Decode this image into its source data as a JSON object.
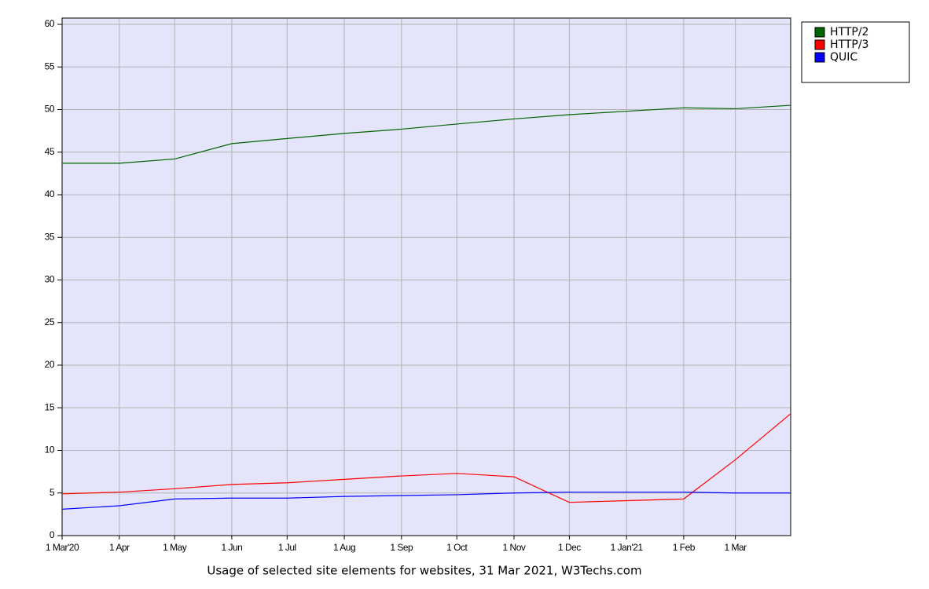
{
  "chart_data": {
    "type": "line",
    "caption": "Usage of selected site elements for websites, 31 Mar 2021, W3Techs.com",
    "x": [
      "2020-03-01",
      "2020-04-01",
      "2020-05-01",
      "2020-06-01",
      "2020-07-01",
      "2020-08-01",
      "2020-09-01",
      "2020-10-01",
      "2020-11-01",
      "2020-12-01",
      "2021-01-01",
      "2021-02-01",
      "2021-03-01",
      "2021-03-31"
    ],
    "series": [
      {
        "name": "HTTP/2",
        "color": "#006400",
        "values": [
          43.7,
          43.7,
          44.2,
          46.0,
          46.6,
          47.2,
          47.7,
          48.3,
          48.9,
          49.4,
          49.8,
          50.2,
          50.1,
          50.5
        ]
      },
      {
        "name": "HTTP/3",
        "color": "#ff0000",
        "values": [
          4.9,
          5.1,
          5.5,
          6.0,
          6.2,
          6.6,
          7.0,
          7.3,
          6.9,
          3.9,
          4.1,
          4.3,
          8.9,
          14.3
        ]
      },
      {
        "name": "QUIC",
        "color": "#0000ff",
        "values": [
          3.1,
          3.5,
          4.3,
          4.4,
          4.4,
          4.6,
          4.7,
          4.8,
          5.0,
          5.1,
          5.1,
          5.1,
          5.0,
          5.0
        ]
      }
    ],
    "xlim": [
      "2020-03-01",
      "2021-03-31"
    ],
    "xticks": [
      {
        "value": "2020-03-01",
        "label": "1 Mar'20"
      },
      {
        "value": "2020-04-01",
        "label": "1 Apr"
      },
      {
        "value": "2020-05-01",
        "label": "1 May"
      },
      {
        "value": "2020-06-01",
        "label": "1 Jun"
      },
      {
        "value": "2020-07-01",
        "label": "1 Jul"
      },
      {
        "value": "2020-08-01",
        "label": "1 Aug"
      },
      {
        "value": "2020-09-01",
        "label": "1 Sep"
      },
      {
        "value": "2020-10-01",
        "label": "1 Oct"
      },
      {
        "value": "2020-11-01",
        "label": "1 Nov"
      },
      {
        "value": "2020-12-01",
        "label": "1 Dec"
      },
      {
        "value": "2021-01-01",
        "label": "1 Jan'21"
      },
      {
        "value": "2021-02-01",
        "label": "1 Feb"
      },
      {
        "value": "2021-03-01",
        "label": "1 Mar"
      }
    ],
    "ylim": [
      0,
      60
    ],
    "yticks": [
      0,
      5,
      10,
      15,
      20,
      25,
      30,
      35,
      40,
      45,
      50,
      55,
      60
    ],
    "grid": true,
    "legend": "top-right",
    "background": "#e4e4fa"
  }
}
